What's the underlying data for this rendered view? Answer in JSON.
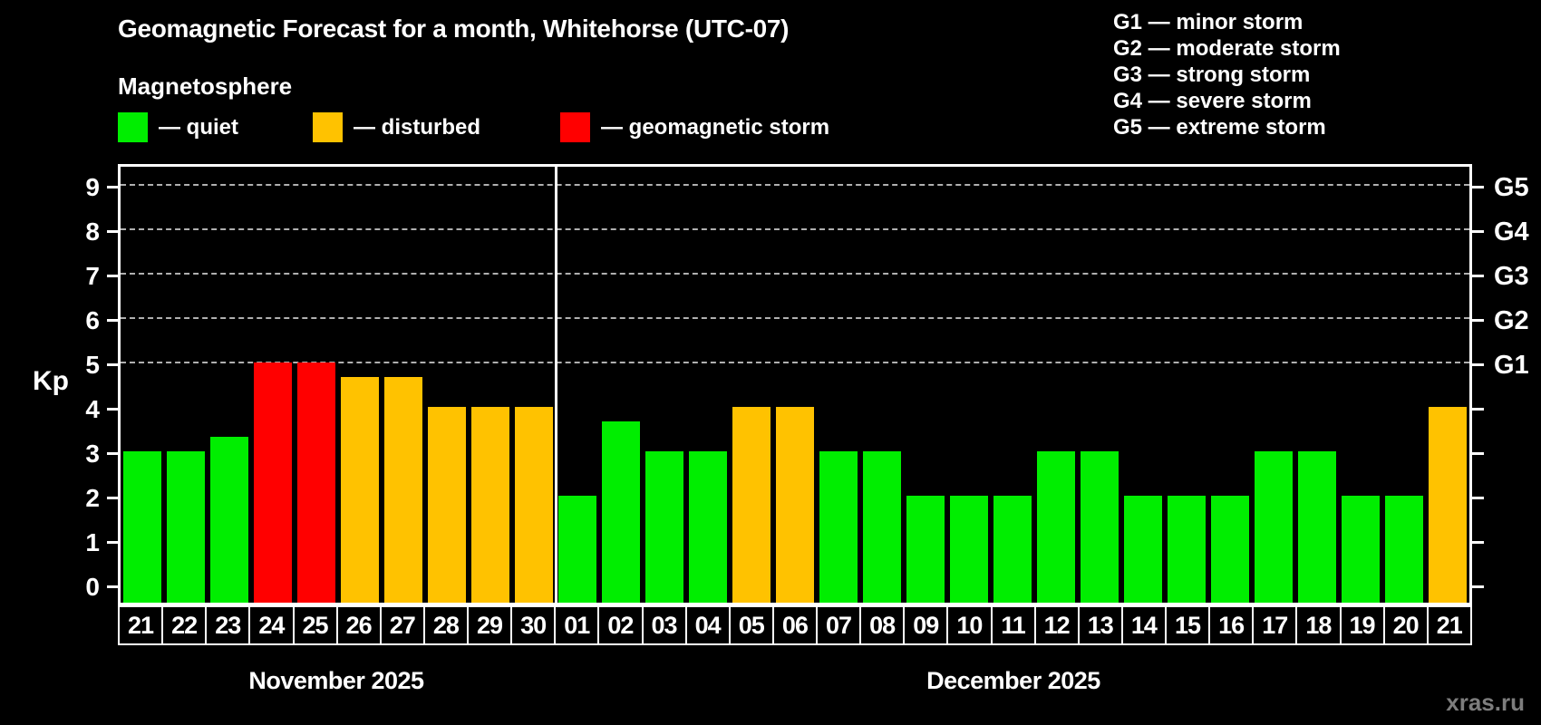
{
  "title": "Geomagnetic Forecast for a month, Whitehorse (UTC-07)",
  "subtitle": "Magnetosphere",
  "ylabel": "Kp",
  "watermark": "xras.ru",
  "legend": [
    {
      "status": "quiet",
      "label": "— quiet",
      "color": "#00ee00"
    },
    {
      "status": "disturbed",
      "label": "— disturbed",
      "color": "#ffc200"
    },
    {
      "status": "storm",
      "label": "— geomagnetic storm",
      "color": "#ff0000"
    }
  ],
  "g_legend": [
    "G1 — minor storm",
    "G2 — moderate storm",
    "G3 — strong storm",
    "G4 — severe storm",
    "G5 — extreme storm"
  ],
  "months": [
    {
      "label": "November 2025",
      "days": 10
    },
    {
      "label": "December 2025",
      "days": 21
    }
  ],
  "chart_data": {
    "type": "bar",
    "title": "Geomagnetic Forecast for a month, Whitehorse (UTC-07)",
    "xlabel": "",
    "ylabel": "Kp",
    "ylim": [
      -0.4,
      9.45
    ],
    "grid": "dashed horizontal lines at Kp 5-9 only",
    "legend_position": "top-left",
    "categories": [
      "21",
      "22",
      "23",
      "24",
      "25",
      "26",
      "27",
      "28",
      "29",
      "30",
      "01",
      "02",
      "03",
      "04",
      "05",
      "06",
      "07",
      "08",
      "09",
      "10",
      "11",
      "12",
      "13",
      "14",
      "15",
      "16",
      "17",
      "18",
      "19",
      "20",
      "21"
    ],
    "values": [
      3,
      3,
      3.33,
      5,
      5,
      4.67,
      4.67,
      4,
      4,
      4,
      2,
      3.67,
      3,
      3,
      4,
      4,
      3,
      3,
      2,
      2,
      2,
      3,
      3,
      2,
      2,
      2,
      3,
      3,
      2,
      2,
      4
    ],
    "statuses": [
      "quiet",
      "quiet",
      "quiet",
      "storm",
      "storm",
      "disturbed",
      "disturbed",
      "disturbed",
      "disturbed",
      "disturbed",
      "quiet",
      "quiet",
      "quiet",
      "quiet",
      "disturbed",
      "disturbed",
      "quiet",
      "quiet",
      "quiet",
      "quiet",
      "quiet",
      "quiet",
      "quiet",
      "quiet",
      "quiet",
      "quiet",
      "quiet",
      "quiet",
      "quiet",
      "quiet",
      "disturbed"
    ],
    "status_colors": {
      "quiet": "#00ee00",
      "disturbed": "#ffc200",
      "storm": "#ff0000"
    },
    "yticks": [
      0,
      1,
      2,
      3,
      4,
      5,
      6,
      7,
      8,
      9
    ],
    "gridlines": [
      5,
      6,
      7,
      8,
      9
    ],
    "right_axis_labels": {
      "5": "G1",
      "6": "G2",
      "7": "G3",
      "8": "G4",
      "9": "G5"
    },
    "colors": {
      "background": "#000000",
      "text": "#ffffff",
      "gridline": "#b0b0b0",
      "frame": "#ffffff",
      "watermark": "#7d7d7d"
    }
  }
}
